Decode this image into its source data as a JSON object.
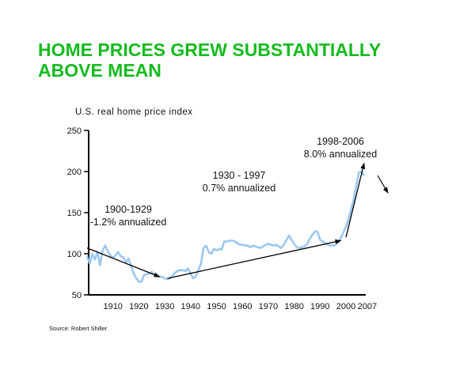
{
  "slide": {
    "title": "HOME PRICES GREW SUBSTANTIALLY ABOVE MEAN",
    "source": "Source:  Robert Shiller"
  },
  "colors": {
    "title": "#14bb1e",
    "series": "#9cc8f0",
    "arrow": "#000000"
  },
  "chart_data": {
    "type": "line",
    "title": "",
    "ylabel": "U.S. real home price index",
    "xlabel": "",
    "ylim": [
      50,
      250
    ],
    "xlim": [
      1900,
      2007
    ],
    "yticks": [
      50,
      100,
      150,
      200,
      250
    ],
    "xticks": [
      1910,
      1920,
      1930,
      1940,
      1950,
      1960,
      1970,
      1980,
      1990,
      2000,
      2007
    ],
    "grid": false,
    "series": [
      {
        "name": "U.S. real home price index",
        "x": [
          1900,
          1901,
          1902,
          1903,
          1904,
          1905,
          1906,
          1907,
          1908,
          1909,
          1910,
          1911,
          1912,
          1913,
          1914,
          1915,
          1916,
          1917,
          1918,
          1919,
          1920,
          1921,
          1922,
          1923,
          1924,
          1925,
          1926,
          1927,
          1928,
          1929,
          1930,
          1931,
          1932,
          1933,
          1934,
          1935,
          1936,
          1937,
          1938,
          1939,
          1940,
          1941,
          1942,
          1943,
          1944,
          1945,
          1946,
          1947,
          1948,
          1949,
          1950,
          1951,
          1952,
          1953,
          1954,
          1955,
          1956,
          1957,
          1958,
          1959,
          1960,
          1961,
          1962,
          1963,
          1964,
          1965,
          1966,
          1967,
          1968,
          1969,
          1970,
          1971,
          1972,
          1973,
          1974,
          1975,
          1976,
          1977,
          1978,
          1979,
          1980,
          1981,
          1982,
          1983,
          1984,
          1985,
          1986,
          1987,
          1988,
          1989,
          1990,
          1991,
          1992,
          1993,
          1994,
          1995,
          1996,
          1997,
          1998,
          1999,
          2000,
          2001,
          2002,
          2003,
          2004,
          2005,
          2006,
          2007
        ],
        "values": [
          97,
          88,
          100,
          93,
          102,
          86,
          104,
          110,
          103,
          98,
          95,
          98,
          102,
          97,
          96,
          90,
          94,
          85,
          76,
          70,
          66,
          66,
          74,
          75,
          76,
          78,
          75,
          73,
          72,
          72,
          70,
          69,
          70,
          73,
          77,
          79,
          80,
          80,
          79,
          82,
          76,
          70,
          72,
          80,
          88,
          107,
          110,
          102,
          100,
          106,
          104,
          106,
          105,
          115,
          115,
          116,
          116,
          115,
          113,
          111,
          111,
          110,
          110,
          108,
          110,
          109,
          108,
          107,
          109,
          111,
          112,
          111,
          110,
          111,
          109,
          107,
          111,
          117,
          122,
          117,
          112,
          108,
          107,
          108,
          109,
          112,
          118,
          123,
          127,
          127,
          117,
          115,
          113,
          111,
          110,
          110,
          111,
          114,
          119,
          126,
          133,
          142,
          154,
          166,
          183,
          199,
          200,
          195
        ]
      }
    ],
    "trend_arrows": [
      {
        "from": [
          1900,
          107
        ],
        "to": [
          1928,
          72
        ],
        "label_lines": [
          "1900-1929",
          "-1.2% annualized"
        ]
      },
      {
        "from": [
          1931,
          70
        ],
        "to": [
          1998,
          116
        ],
        "label_lines": [
          "1930 - 1997",
          "0.7% annualized"
        ]
      },
      {
        "from": [
          2000,
          120
        ],
        "to": [
          2007,
          210
        ],
        "label_lines": [
          "1998-2006",
          "8.0% annualized"
        ]
      }
    ]
  }
}
